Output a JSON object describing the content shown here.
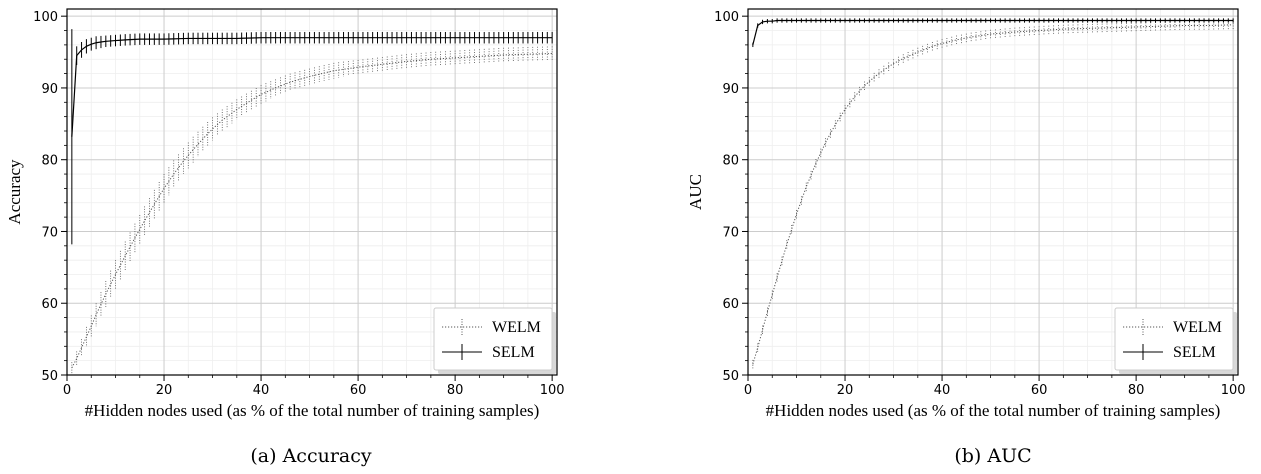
{
  "chart_data": [
    {
      "type": "line",
      "caption": "(a)  Accuracy",
      "xlabel": "#Hidden nodes used (as % of the total number of training samples)",
      "ylabel": "Accuracy",
      "xlim": [
        0,
        101
      ],
      "ylim": [
        50,
        101
      ],
      "xticks": [
        "0",
        "20",
        "40",
        "60",
        "80",
        "100"
      ],
      "yticks": [
        "50",
        "60",
        "70",
        "80",
        "90",
        "100"
      ],
      "grid": true,
      "legend_position": "bottom-right",
      "series": [
        {
          "name": "WELM",
          "style": "dotted",
          "x": [
            1,
            2,
            3,
            4,
            5,
            6,
            8,
            10,
            12,
            14,
            16,
            18,
            20,
            22,
            24,
            26,
            28,
            30,
            32,
            35,
            38,
            40,
            43,
            46,
            50,
            55,
            60,
            65,
            70,
            75,
            80,
            85,
            90,
            95,
            100
          ],
          "y": [
            51.0,
            52.3,
            53.8,
            55.3,
            56.8,
            58.4,
            61.3,
            64.0,
            66.6,
            69.1,
            71.5,
            73.8,
            76.0,
            78.0,
            79.8,
            81.4,
            82.9,
            84.3,
            85.5,
            87.0,
            88.3,
            89.1,
            90.0,
            90.8,
            91.6,
            92.4,
            92.9,
            93.3,
            93.7,
            94.0,
            94.2,
            94.4,
            94.6,
            94.7,
            94.8
          ],
          "err": [
            0.8,
            1.0,
            1.2,
            1.4,
            1.5,
            1.6,
            1.8,
            2.0,
            2.0,
            2.0,
            2.0,
            2.0,
            2.0,
            1.9,
            1.8,
            1.8,
            1.7,
            1.6,
            1.5,
            1.4,
            1.3,
            1.3,
            1.2,
            1.2,
            1.1,
            1.1,
            1.0,
            1.0,
            1.0,
            1.0,
            1.0,
            1.0,
            1.0,
            1.0,
            1.0
          ]
        },
        {
          "name": "SELM",
          "style": "solid",
          "x": [
            1,
            2,
            3,
            4,
            5,
            6,
            8,
            10,
            12,
            15,
            20,
            25,
            30,
            35,
            40,
            45,
            50,
            55,
            60,
            65,
            70,
            75,
            80,
            85,
            90,
            95,
            100
          ],
          "y": [
            83.2,
            94.5,
            95.3,
            95.8,
            96.1,
            96.3,
            96.5,
            96.6,
            96.7,
            96.8,
            96.8,
            96.9,
            96.9,
            96.9,
            97.0,
            97.0,
            97.0,
            97.0,
            97.0,
            97.0,
            97.0,
            97.0,
            97.0,
            97.0,
            97.0,
            97.0,
            97.0
          ],
          "err": [
            15.0,
            1.3,
            1.1,
            1.0,
            0.9,
            0.9,
            0.8,
            0.8,
            0.8,
            0.8,
            0.8,
            0.8,
            0.8,
            0.8,
            0.8,
            0.8,
            0.8,
            0.8,
            0.8,
            0.8,
            0.8,
            0.8,
            0.8,
            0.8,
            0.8,
            0.8,
            0.8
          ]
        }
      ]
    },
    {
      "type": "line",
      "caption": "(b)  AUC",
      "xlabel": "#Hidden nodes used (as % of the total number of training samples)",
      "ylabel": "AUC",
      "xlim": [
        0,
        101
      ],
      "ylim": [
        50,
        101
      ],
      "xticks": [
        "0",
        "20",
        "40",
        "60",
        "80",
        "100"
      ],
      "yticks": [
        "50",
        "60",
        "70",
        "80",
        "90",
        "100"
      ],
      "grid": true,
      "legend_position": "bottom-right",
      "series": [
        {
          "name": "WELM",
          "style": "dotted",
          "x": [
            1,
            2,
            3,
            4,
            5,
            6,
            8,
            10,
            12,
            14,
            16,
            18,
            20,
            22,
            24,
            26,
            28,
            30,
            32,
            35,
            38,
            40,
            43,
            46,
            50,
            55,
            60,
            65,
            70,
            75,
            80,
            85,
            90,
            95,
            100
          ],
          "y": [
            51.5,
            53.8,
            56.3,
            58.8,
            61.2,
            63.6,
            68.2,
            72.4,
            76.2,
            79.5,
            82.4,
            84.9,
            87.0,
            88.8,
            90.3,
            91.5,
            92.5,
            93.4,
            94.1,
            95.0,
            95.8,
            96.2,
            96.7,
            97.1,
            97.5,
            97.8,
            98.0,
            98.2,
            98.3,
            98.4,
            98.5,
            98.6,
            98.7,
            98.7,
            98.8
          ]
        },
        {
          "name": "SELM",
          "style": "solid",
          "x": [
            1,
            2,
            3,
            4,
            5,
            6,
            8,
            10,
            15,
            20,
            30,
            40,
            50,
            60,
            70,
            80,
            90,
            100
          ],
          "y": [
            96.0,
            98.7,
            99.2,
            99.3,
            99.3,
            99.4,
            99.4,
            99.4,
            99.4,
            99.4,
            99.4,
            99.4,
            99.4,
            99.4,
            99.4,
            99.4,
            99.4,
            99.4
          ]
        }
      ]
    }
  ]
}
